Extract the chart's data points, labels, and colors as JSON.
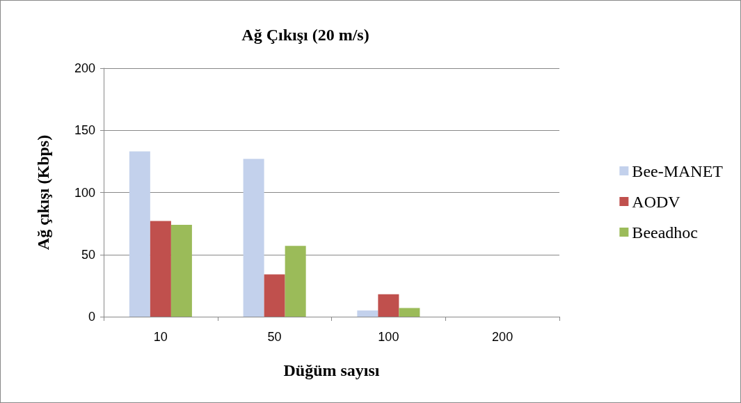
{
  "chart_data": {
    "type": "bar",
    "title": "Ağ Çıkışı (20 m/s)",
    "xlabel": "Düğüm sayısı",
    "ylabel": "Ağ çıkışı (Kbps)",
    "categories": [
      "10",
      "50",
      "100",
      "200"
    ],
    "series": [
      {
        "name": "Bee-MANET",
        "color": "#c3d1ec",
        "values": [
          133,
          127,
          5,
          0
        ]
      },
      {
        "name": "AODV",
        "color": "#c0504d",
        "values": [
          77,
          34,
          18,
          0
        ]
      },
      {
        "name": "Beeadhoc",
        "color": "#9bbb59",
        "values": [
          74,
          57,
          7,
          0
        ]
      }
    ],
    "ylim": [
      0,
      200
    ],
    "yticks": [
      0,
      50,
      100,
      150,
      200
    ],
    "grid": "y",
    "legend": "right"
  }
}
